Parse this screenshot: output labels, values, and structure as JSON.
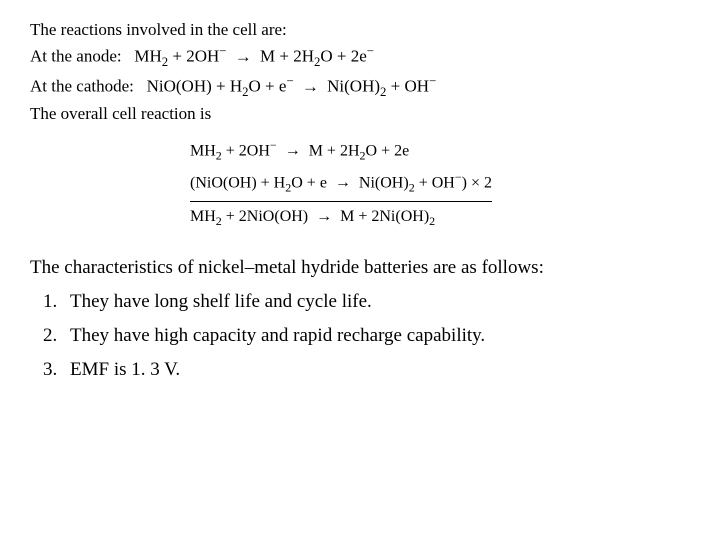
{
  "intro": "The reactions involved in the cell are:",
  "anode": {
    "label": "At the anode:",
    "lhs1": "MH",
    "lhs1_sub": "2",
    "plus1": " + 2OH",
    "oh_sup": "−",
    "arrow": "→",
    "rhs1": "M + 2H",
    "rhs1_sub": "2",
    "rhs2": "O + 2e",
    "e_sup": "−"
  },
  "cathode": {
    "label": "At the cathode:",
    "lhs": "NiO(OH) + H",
    "h2o_sub": "2",
    "lhs2": "O + e",
    "e_sup": "−",
    "arrow": "→",
    "rhs": "Ni(OH)",
    "nioh_sub": "2",
    "rhs2": " + OH",
    "oh_sup": "−"
  },
  "overall_label": "The overall cell reaction is",
  "eq1": {
    "a": "MH",
    "a_sub": "2",
    "b": " + 2OH",
    "b_sup": "−",
    "arrow": "→",
    "c": "M + 2H",
    "c_sub": "2",
    "d": "O + 2e"
  },
  "eq2": {
    "a": "(NiO(OH) + H",
    "a_sub": "2",
    "b": "O + e",
    "arrow": "→",
    "c": "Ni(OH)",
    "c_sub": "2",
    "d": " + OH",
    "d_sup": "−",
    "e": ") × 2"
  },
  "eq3": {
    "a": "MH",
    "a_sub": "2",
    "b": " + 2NiO(OH)",
    "arrow": "→",
    "c": "M + 2Ni(OH)",
    "c_sub": "2"
  },
  "characteristics_intro": "The characteristics of nickel–metal hydride batteries are as follows:",
  "items": [
    "They have long shelf life and cycle life.",
    "They have high capacity and rapid recharge capability.",
    " EMF is 1. 3 V."
  ]
}
